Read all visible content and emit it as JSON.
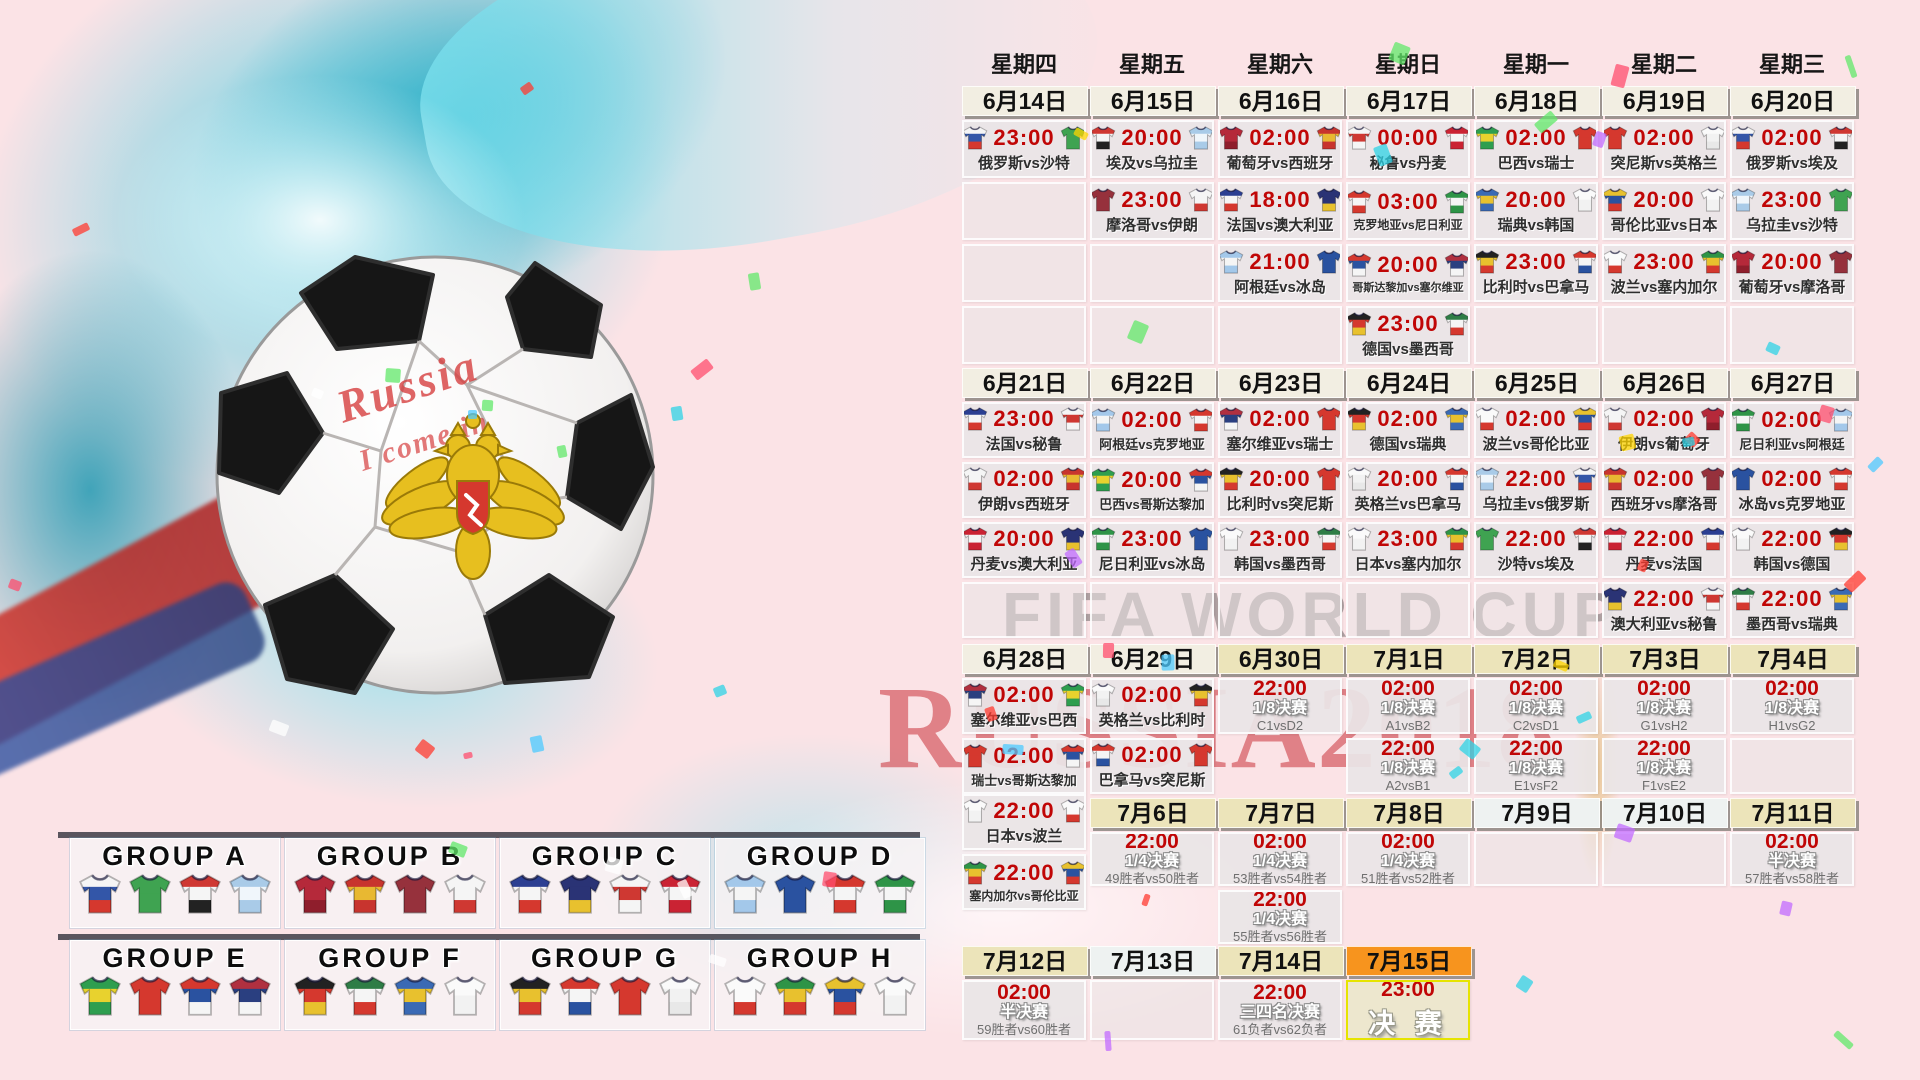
{
  "watermarks": {
    "line1": "FIFA WORLD CUP",
    "line2": "RUSSIA2018"
  },
  "ball": {
    "line1": "Russia",
    "line2": "I come in"
  },
  "colors": {
    "background_pink": "#fbe3e6",
    "time_red": "#c00606",
    "date_normal": "#f2eee2",
    "date_beige": "#ece4ba",
    "date_light": "#eef2f1",
    "date_orange": "#f7941e",
    "cell_gray": "#e9e5e6",
    "final_border_yellow": "#e6e400",
    "watermark_red": "#c62028",
    "splash_teal": "#58d1e4"
  },
  "weekdays": [
    "星期四",
    "星期五",
    "星期六",
    "星期日",
    "星期一",
    "星期二",
    "星期三"
  ],
  "teams": {
    "俄罗斯": [
      "#f5f5f5",
      "#3356a8",
      "#d5382e"
    ],
    "沙特": [
      "#3fa351",
      "#3fa351"
    ],
    "埃及": [
      "#cf3832",
      "#f5f5f5",
      "#222222"
    ],
    "乌拉圭": [
      "#a9cbe8",
      "#f0f6fb",
      "#a9cbe8"
    ],
    "葡萄牙": [
      "#b5293a",
      "#b5293a",
      "#8f1e2c"
    ],
    "西班牙": [
      "#c8342e",
      "#e8b832",
      "#c8342e"
    ],
    "摩洛哥": [
      "#96313c",
      "#96313c"
    ],
    "伊朗": [
      "#f5f5f5",
      "#f5f5f5",
      "#cf3832"
    ],
    "法国": [
      "#2b3f92",
      "#f5f5f5",
      "#d5382e"
    ],
    "澳大利亚": [
      "#2a3375",
      "#2a3375",
      "#e8c12e"
    ],
    "秘鲁": [
      "#f5f5f5",
      "#cf3832",
      "#f5f5f5"
    ],
    "丹麦": [
      "#ca2333",
      "#f5f5f5",
      "#ca2333"
    ],
    "阿根廷": [
      "#a3c8ea",
      "#f5f5f5",
      "#a3c8ea"
    ],
    "冰岛": [
      "#2a52a0",
      "#2a52a0"
    ],
    "克罗地亚": [
      "#d5382e",
      "#f5f5f5",
      "#d5382e"
    ],
    "尼日利亚": [
      "#2e9447",
      "#f5f5f5",
      "#2e9447"
    ],
    "哥斯达黎加": [
      "#d5382e",
      "#2a52a0",
      "#f5f5f5"
    ],
    "塞尔维亚": [
      "#b03040",
      "#2a3f80",
      "#f5f5f5"
    ],
    "德国": [
      "#222222",
      "#d5382e",
      "#e8c12e"
    ],
    "瑞典": [
      "#3a6ab5",
      "#e8c12e",
      "#3a6ab5"
    ],
    "韩国": [
      "#fafafa",
      "#f2f2f2"
    ],
    "墨西哥": [
      "#2e7d46",
      "#f5f5f5",
      "#d5382e"
    ],
    "巴西": [
      "#2e9e4f",
      "#e8d22e",
      "#2e9e4f"
    ],
    "瑞士": [
      "#d5382e",
      "#d5382e"
    ],
    "比利时": [
      "#222222",
      "#e8c12e",
      "#d5382e"
    ],
    "巴拿马": [
      "#d5382e",
      "#f5f5f5",
      "#2a52a0"
    ],
    "突尼斯": [
      "#d5382e",
      "#d5382e"
    ],
    "英格兰": [
      "#fafafa",
      "#f2f2f2",
      "#e8e8e8"
    ],
    "波兰": [
      "#fafafa",
      "#fafafa",
      "#d5382e"
    ],
    "塞内加尔": [
      "#2e9447",
      "#e8c12e",
      "#d5382e"
    ],
    "哥伦比亚": [
      "#e8c12e",
      "#2a52a0",
      "#d5382e"
    ],
    "日本": [
      "#fafafa",
      "#f2f2f2"
    ]
  },
  "bands": [
    {
      "dates": [
        {
          "label": "6月14日",
          "style": "normal"
        },
        {
          "label": "6月15日",
          "style": "normal"
        },
        {
          "label": "6月16日",
          "style": "normal"
        },
        {
          "label": "6月17日",
          "style": "normal"
        },
        {
          "label": "6月18日",
          "style": "normal"
        },
        {
          "label": "6月19日",
          "style": "normal"
        },
        {
          "label": "6月20日",
          "style": "normal"
        }
      ],
      "rows": [
        [
          {
            "t": "m",
            "time": "23:00",
            "a": "俄罗斯",
            "b": "沙特"
          },
          {
            "t": "m",
            "time": "20:00",
            "a": "埃及",
            "b": "乌拉圭"
          },
          {
            "t": "m",
            "time": "02:00",
            "a": "葡萄牙",
            "b": "西班牙"
          },
          {
            "t": "m",
            "time": "00:00",
            "a": "秘鲁",
            "b": "丹麦"
          },
          {
            "t": "m",
            "time": "02:00",
            "a": "巴西",
            "b": "瑞士"
          },
          {
            "t": "m",
            "time": "02:00",
            "a": "突尼斯",
            "b": "英格兰"
          },
          {
            "t": "m",
            "time": "02:00",
            "a": "俄罗斯",
            "b": "埃及"
          }
        ],
        [
          {
            "t": "e"
          },
          {
            "t": "m",
            "time": "23:00",
            "a": "摩洛哥",
            "b": "伊朗"
          },
          {
            "t": "m",
            "time": "18:00",
            "a": "法国",
            "b": "澳大利亚"
          },
          {
            "t": "m",
            "time": "03:00",
            "a": "克罗地亚",
            "b": "尼日利亚"
          },
          {
            "t": "m",
            "time": "20:00",
            "a": "瑞典",
            "b": "韩国"
          },
          {
            "t": "m",
            "time": "20:00",
            "a": "哥伦比亚",
            "b": "日本"
          },
          {
            "t": "m",
            "time": "23:00",
            "a": "乌拉圭",
            "b": "沙特"
          }
        ],
        [
          {
            "t": "e"
          },
          {
            "t": "e"
          },
          {
            "t": "m",
            "time": "21:00",
            "a": "阿根廷",
            "b": "冰岛"
          },
          {
            "t": "m",
            "time": "20:00",
            "a": "哥斯达黎加",
            "b": "塞尔维亚"
          },
          {
            "t": "m",
            "time": "23:00",
            "a": "比利时",
            "b": "巴拿马"
          },
          {
            "t": "m",
            "time": "23:00",
            "a": "波兰",
            "b": "塞内加尔"
          },
          {
            "t": "m",
            "time": "20:00",
            "a": "葡萄牙",
            "b": "摩洛哥"
          }
        ],
        [
          {
            "t": "e"
          },
          {
            "t": "e"
          },
          {
            "t": "e"
          },
          {
            "t": "m",
            "time": "23:00",
            "a": "德国",
            "b": "墨西哥"
          },
          {
            "t": "e"
          },
          {
            "t": "e"
          },
          {
            "t": "e"
          }
        ]
      ]
    },
    {
      "dates": [
        {
          "label": "6月21日",
          "style": "normal"
        },
        {
          "label": "6月22日",
          "style": "normal"
        },
        {
          "label": "6月23日",
          "style": "normal"
        },
        {
          "label": "6月24日",
          "style": "normal"
        },
        {
          "label": "6月25日",
          "style": "normal"
        },
        {
          "label": "6月26日",
          "style": "normal"
        },
        {
          "label": "6月27日",
          "style": "normal"
        }
      ],
      "rows": [
        [
          {
            "t": "m",
            "time": "23:00",
            "a": "法国",
            "b": "秘鲁"
          },
          {
            "t": "m",
            "time": "02:00",
            "a": "阿根廷",
            "b": "克罗地亚"
          },
          {
            "t": "m",
            "time": "02:00",
            "a": "塞尔维亚",
            "b": "瑞士"
          },
          {
            "t": "m",
            "time": "02:00",
            "a": "德国",
            "b": "瑞典"
          },
          {
            "t": "m",
            "time": "02:00",
            "a": "波兰",
            "b": "哥伦比亚"
          },
          {
            "t": "m",
            "time": "02:00",
            "a": "伊朗",
            "b": "葡萄牙"
          },
          {
            "t": "m",
            "time": "02:00",
            "a": "尼日利亚",
            "b": "阿根廷"
          }
        ],
        [
          {
            "t": "m",
            "time": "02:00",
            "a": "伊朗",
            "b": "西班牙"
          },
          {
            "t": "m",
            "time": "20:00",
            "a": "巴西",
            "b": "哥斯达黎加"
          },
          {
            "t": "m",
            "time": "20:00",
            "a": "比利时",
            "b": "突尼斯"
          },
          {
            "t": "m",
            "time": "20:00",
            "a": "英格兰",
            "b": "巴拿马"
          },
          {
            "t": "m",
            "time": "22:00",
            "a": "乌拉圭",
            "b": "俄罗斯"
          },
          {
            "t": "m",
            "time": "02:00",
            "a": "西班牙",
            "b": "摩洛哥"
          },
          {
            "t": "m",
            "time": "02:00",
            "a": "冰岛",
            "b": "克罗地亚"
          }
        ],
        [
          {
            "t": "m",
            "time": "20:00",
            "a": "丹麦",
            "b": "澳大利亚"
          },
          {
            "t": "m",
            "time": "23:00",
            "a": "尼日利亚",
            "b": "冰岛"
          },
          {
            "t": "m",
            "time": "23:00",
            "a": "韩国",
            "b": "墨西哥"
          },
          {
            "t": "m",
            "time": "23:00",
            "a": "日本",
            "b": "塞内加尔"
          },
          {
            "t": "m",
            "time": "22:00",
            "a": "沙特",
            "b": "埃及"
          },
          {
            "t": "m",
            "time": "22:00",
            "a": "丹麦",
            "b": "法国"
          },
          {
            "t": "m",
            "time": "22:00",
            "a": "韩国",
            "b": "德国"
          }
        ],
        [
          {
            "t": "e"
          },
          {
            "t": "e"
          },
          {
            "t": "e"
          },
          {
            "t": "e"
          },
          {
            "t": "e"
          },
          {
            "t": "m",
            "time": "22:00",
            "a": "澳大利亚",
            "b": "秘鲁"
          },
          {
            "t": "m",
            "time": "22:00",
            "a": "墨西哥",
            "b": "瑞典"
          }
        ]
      ]
    },
    {
      "dates": [
        {
          "label": "6月28日",
          "style": "normal"
        },
        {
          "label": "6月29日",
          "style": "normal"
        },
        {
          "label": "6月30日",
          "style": "beige"
        },
        {
          "label": "7月1日",
          "style": "beige"
        },
        {
          "label": "7月2日",
          "style": "beige"
        },
        {
          "label": "7月3日",
          "style": "beige"
        },
        {
          "label": "7月4日",
          "style": "beige"
        }
      ],
      "rows": [
        [
          {
            "t": "m",
            "time": "02:00",
            "a": "塞尔维亚",
            "b": "巴西"
          },
          {
            "t": "m",
            "time": "02:00",
            "a": "英格兰",
            "b": "比利时"
          },
          {
            "t": "k",
            "time": "22:00",
            "stage": "1/8决赛",
            "d": "C1vsD2"
          },
          {
            "t": "k",
            "time": "02:00",
            "stage": "1/8决赛",
            "d": "A1vsB2"
          },
          {
            "t": "k",
            "time": "02:00",
            "stage": "1/8决赛",
            "d": "C2vsD1"
          },
          {
            "t": "k",
            "time": "02:00",
            "stage": "1/8决赛",
            "d": "G1vsH2"
          },
          {
            "t": "k",
            "time": "02:00",
            "stage": "1/8决赛",
            "d": "H1vsG2"
          }
        ],
        [
          {
            "t": "m",
            "time": "02:00",
            "a": "瑞士",
            "b": "哥斯达黎加"
          },
          {
            "t": "m",
            "time": "02:00",
            "a": "巴拿马",
            "b": "突尼斯"
          },
          null,
          {
            "t": "k",
            "time": "22:00",
            "stage": "1/8决赛",
            "d": "A2vsB1"
          },
          {
            "t": "k",
            "time": "22:00",
            "stage": "1/8决赛",
            "d": "E1vsF2"
          },
          {
            "t": "k",
            "time": "22:00",
            "stage": "1/8决赛",
            "d": "F1vsE2"
          },
          {
            "t": "e"
          }
        ]
      ]
    },
    {
      "col1_matches": [
        {
          "t": "m",
          "time": "22:00",
          "a": "日本",
          "b": "波兰"
        },
        {
          "t": "m",
          "time": "22:00",
          "a": "塞内加尔",
          "b": "哥伦比亚"
        }
      ],
      "dates": [
        {
          "label": "7月6日",
          "style": "beige"
        },
        {
          "label": "7月7日",
          "style": "beige"
        },
        {
          "label": "7月8日",
          "style": "beige"
        },
        {
          "label": "7月9日",
          "style": "light"
        },
        {
          "label": "7月10日",
          "style": "light"
        },
        {
          "label": "7月11日",
          "style": "beige"
        }
      ],
      "date_col_start": 1,
      "rows": [
        [
          {
            "t": "k",
            "time": "22:00",
            "stage": "1/4决赛",
            "d": "49胜者vs50胜者"
          },
          {
            "t": "k",
            "time": "02:00",
            "stage": "1/4决赛",
            "d": "53胜者vs54胜者"
          },
          {
            "t": "k",
            "time": "02:00",
            "stage": "1/4决赛",
            "d": "51胜者vs52胜者"
          },
          {
            "t": "e"
          },
          {
            "t": "e"
          },
          {
            "t": "k",
            "time": "02:00",
            "stage": "半决赛",
            "d": "57胜者vs58胜者"
          }
        ],
        [
          null,
          {
            "t": "k",
            "time": "22:00",
            "stage": "1/4决赛",
            "d": "55胜者vs56胜者"
          },
          null,
          null,
          null,
          null
        ]
      ]
    },
    {
      "dates": [
        {
          "label": "7月12日",
          "style": "beige"
        },
        {
          "label": "7月13日",
          "style": "light"
        },
        {
          "label": "7月14日",
          "style": "beige"
        },
        {
          "label": "7月15日",
          "style": "orange"
        }
      ],
      "date_col_start": 0,
      "rows": [
        [
          {
            "t": "k",
            "time": "02:00",
            "stage": "半决赛",
            "d": "59胜者vs60胜者"
          },
          {
            "t": "e"
          },
          {
            "t": "k",
            "time": "22:00",
            "stage": "三四名决赛",
            "d": "61负者vs62负者"
          },
          {
            "t": "f",
            "time": "23:00",
            "stage": "决 赛"
          }
        ]
      ]
    }
  ],
  "groups": [
    {
      "label": "GROUP A",
      "teams": [
        "俄罗斯",
        "沙特",
        "埃及",
        "乌拉圭"
      ]
    },
    {
      "label": "GROUP B",
      "teams": [
        "葡萄牙",
        "西班牙",
        "摩洛哥",
        "伊朗"
      ]
    },
    {
      "label": "GROUP C",
      "teams": [
        "法国",
        "澳大利亚",
        "秘鲁",
        "丹麦"
      ]
    },
    {
      "label": "GROUP D",
      "teams": [
        "阿根廷",
        "冰岛",
        "克罗地亚",
        "尼日利亚"
      ]
    },
    {
      "label": "GROUP E",
      "teams": [
        "巴西",
        "瑞士",
        "哥斯达黎加",
        "塞尔维亚"
      ]
    },
    {
      "label": "GROUP F",
      "teams": [
        "德国",
        "墨西哥",
        "瑞典",
        "韩国"
      ]
    },
    {
      "label": "GROUP G",
      "teams": [
        "比利时",
        "巴拿马",
        "突尼斯",
        "英格兰"
      ]
    },
    {
      "label": "GROUP H",
      "teams": [
        "波兰",
        "塞内加尔",
        "哥伦比亚",
        "日本"
      ]
    }
  ]
}
